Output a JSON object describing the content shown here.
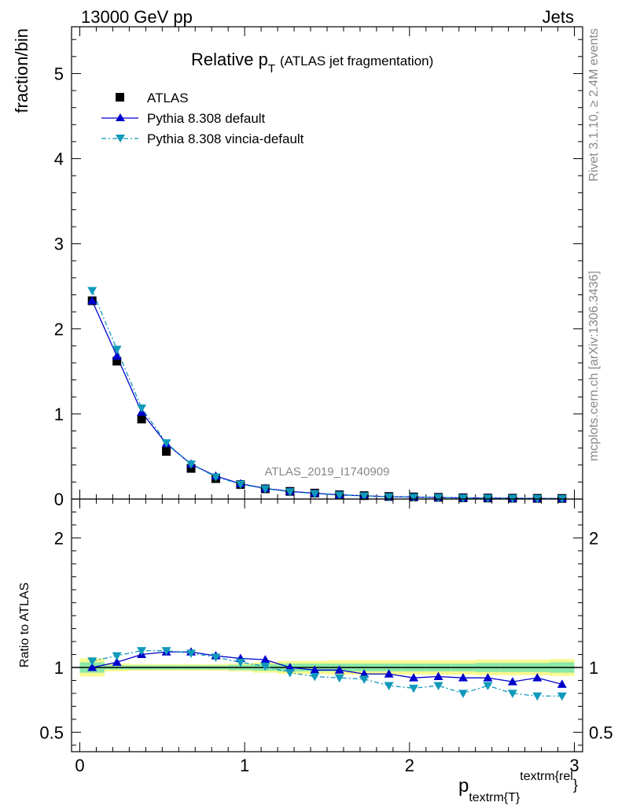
{
  "header": {
    "energy": "13000 GeV pp",
    "category": "Jets",
    "title_main": "Relative p",
    "title_sub": "T",
    "title_paren": "(ATLAS jet fragmentation)",
    "analysis_id": "ATLAS_2019_I1740909",
    "side_rivet": "Rivet 3.1.10, ≥ 2.4M events",
    "side_mcplots": "mcplots.cern.ch [arXiv:1306.3436]"
  },
  "labels": {
    "ylabel_top": "fraction/bin",
    "ylabel_bottom": "Ratio to ATLAS",
    "xlabel_p": "p",
    "xlabel_sub": "textrm{T",
    "xlabel_brace": "}",
    "xlabel_sup": "textrm{rel",
    "xlabel_end": "}"
  },
  "legend": [
    {
      "name": "ATLAS"
    },
    {
      "name": "Pythia 8.308 default"
    },
    {
      "name": "Pythia 8.308 vincia-default"
    }
  ],
  "colors": {
    "data": "#000000",
    "default": "#0000cc",
    "vincia": "#1199bb",
    "band_green": "#8be8a8",
    "band_yellow": "#f8f890"
  },
  "chart_data": [
    {
      "type": "scatter",
      "panel": "main",
      "xlim": [
        -0.05,
        3.05
      ],
      "ylim": [
        0,
        5.55
      ],
      "yticks": [
        0,
        1,
        2,
        3,
        4,
        5
      ],
      "bin_edges": [
        0.0,
        0.15,
        0.3,
        0.45,
        0.6,
        0.75,
        0.9,
        1.05,
        1.2,
        1.35,
        1.5,
        1.65,
        1.8,
        1.95,
        2.1,
        2.25,
        2.4,
        2.55,
        2.7,
        2.85,
        3.0
      ],
      "x": [
        0.075,
        0.225,
        0.375,
        0.525,
        0.675,
        0.825,
        0.975,
        1.125,
        1.275,
        1.425,
        1.575,
        1.725,
        1.875,
        2.025,
        2.175,
        2.325,
        2.475,
        2.625,
        2.775,
        2.925
      ],
      "series": [
        {
          "name": "ATLAS",
          "values": [
            2.33,
            1.62,
            0.94,
            0.56,
            0.36,
            0.24,
            0.17,
            0.12,
            0.09,
            0.07,
            0.05,
            0.04,
            0.03,
            0.025,
            0.02,
            0.015,
            0.012,
            0.01,
            0.008,
            0.007
          ]
        },
        {
          "name": "Pythia 8.308 default",
          "values": [
            2.33,
            1.68,
            1.02,
            0.65,
            0.41,
            0.27,
            0.18,
            0.125,
            0.09,
            0.068,
            0.049,
            0.038,
            0.028,
            0.023,
            0.018,
            0.014,
            0.011,
            0.009,
            0.007,
            0.006
          ]
        },
        {
          "name": "Pythia 8.308 vincia-default",
          "values": [
            2.45,
            1.76,
            1.07,
            0.66,
            0.41,
            0.26,
            0.175,
            0.12,
            0.086,
            0.064,
            0.046,
            0.036,
            0.026,
            0.021,
            0.017,
            0.013,
            0.01,
            0.008,
            0.006,
            0.005
          ]
        }
      ]
    },
    {
      "type": "line",
      "panel": "ratio",
      "ylabel": "Ratio to ATLAS",
      "xlim": [
        -0.05,
        3.05
      ],
      "ylim": [
        0.35,
        2.3
      ],
      "yticks": [
        0.5,
        1,
        2
      ],
      "xticks": [
        0,
        1,
        2,
        3
      ],
      "x": [
        0.075,
        0.225,
        0.375,
        0.525,
        0.675,
        0.825,
        0.975,
        1.125,
        1.275,
        1.425,
        1.575,
        1.725,
        1.875,
        2.025,
        2.175,
        2.325,
        2.475,
        2.625,
        2.775,
        2.925
      ],
      "band_green_halfwidth": [
        0.04,
        0.015,
        0.015,
        0.015,
        0.015,
        0.015,
        0.02,
        0.025,
        0.03,
        0.03,
        0.03,
        0.03,
        0.03,
        0.03,
        0.03,
        0.03,
        0.035,
        0.035,
        0.035,
        0.04
      ],
      "band_yellow_halfwidth": [
        0.07,
        0.03,
        0.025,
        0.025,
        0.025,
        0.025,
        0.03,
        0.04,
        0.05,
        0.05,
        0.055,
        0.055,
        0.055,
        0.055,
        0.055,
        0.055,
        0.06,
        0.06,
        0.06,
        0.065
      ],
      "series": [
        {
          "name": "Pythia 8.308 default",
          "values": [
            1.0,
            1.04,
            1.1,
            1.12,
            1.12,
            1.09,
            1.07,
            1.06,
            1.0,
            0.98,
            0.98,
            0.95,
            0.95,
            0.92,
            0.93,
            0.92,
            0.92,
            0.89,
            0.92,
            0.87
          ]
        },
        {
          "name": "Pythia 8.308 vincia-default",
          "values": [
            1.05,
            1.09,
            1.13,
            1.13,
            1.11,
            1.08,
            1.04,
            1.01,
            0.96,
            0.93,
            0.92,
            0.91,
            0.86,
            0.84,
            0.86,
            0.8,
            0.86,
            0.8,
            0.78,
            0.78
          ]
        }
      ]
    }
  ]
}
